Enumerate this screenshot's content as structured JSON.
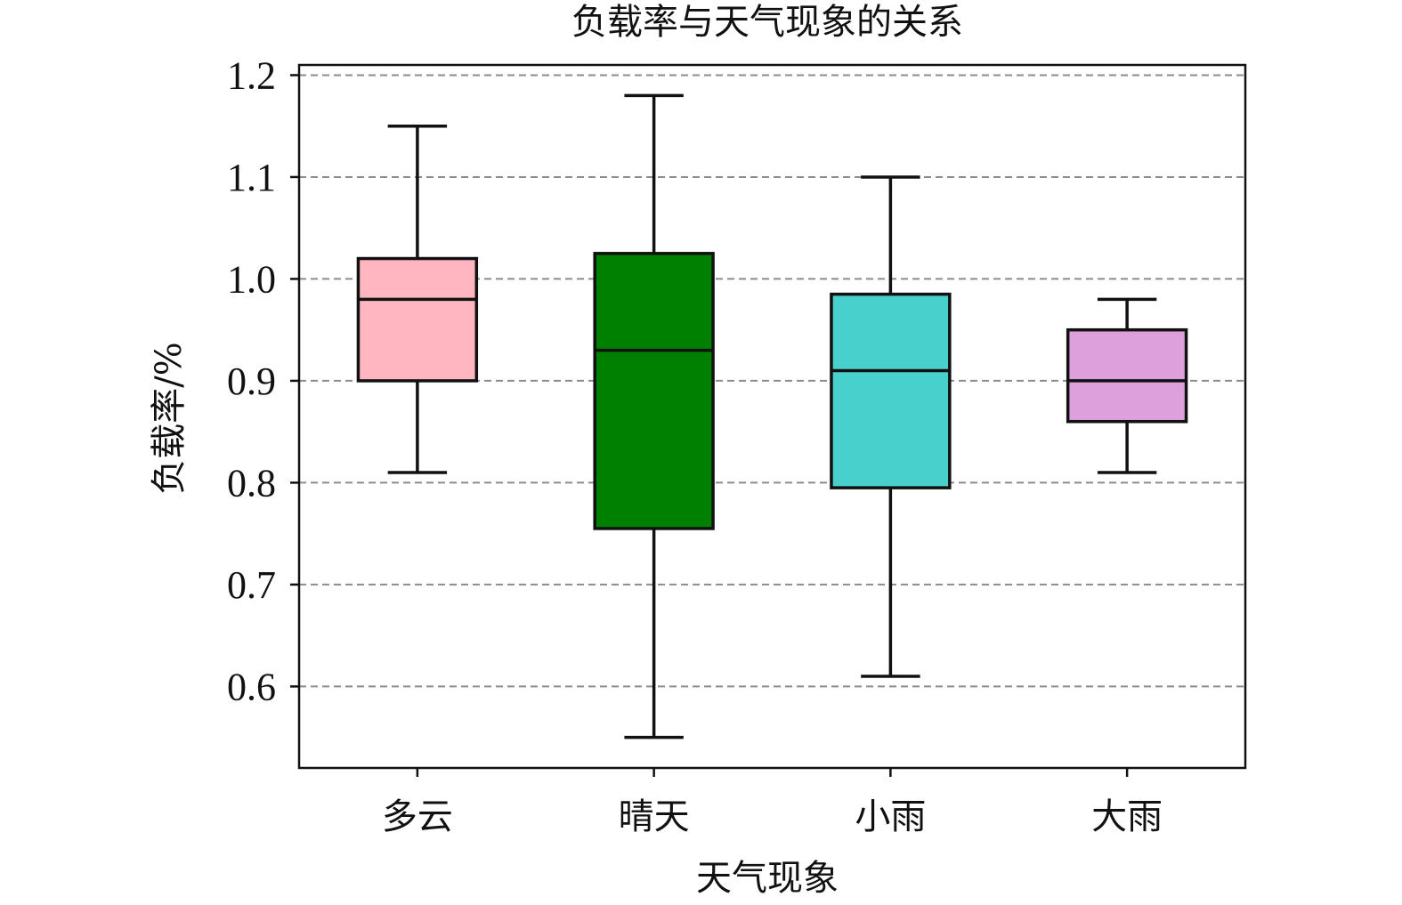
{
  "chart_data": {
    "type": "box",
    "title": "负载率与天气现象的关系",
    "xlabel": "天气现象",
    "ylabel": "负载率/%",
    "ylim": [
      0.52,
      1.21
    ],
    "yticks": [
      0.6,
      0.7,
      0.8,
      0.9,
      1.0,
      1.1,
      1.2
    ],
    "ytick_labels": [
      "0.6",
      "0.7",
      "0.8",
      "0.9",
      "1.0",
      "1.1",
      "1.2"
    ],
    "grid": {
      "y": true,
      "style": "dashed"
    },
    "categories": [
      "多云",
      "晴天",
      "小雨",
      "大雨"
    ],
    "boxes": [
      {
        "category": "多云",
        "whisker_low": 0.81,
        "q1": 0.9,
        "median": 0.98,
        "q3": 1.02,
        "whisker_high": 1.15,
        "color": "#ffb6c1"
      },
      {
        "category": "晴天",
        "whisker_low": 0.55,
        "q1": 0.755,
        "median": 0.93,
        "q3": 1.025,
        "whisker_high": 1.18,
        "color": "#008000"
      },
      {
        "category": "小雨",
        "whisker_low": 0.61,
        "q1": 0.795,
        "median": 0.91,
        "q3": 0.985,
        "whisker_high": 1.1,
        "color": "#48d1cc"
      },
      {
        "category": "大雨",
        "whisker_low": 0.81,
        "q1": 0.86,
        "median": 0.9,
        "q3": 0.95,
        "whisker_high": 0.98,
        "color": "#dda0dd"
      }
    ]
  }
}
